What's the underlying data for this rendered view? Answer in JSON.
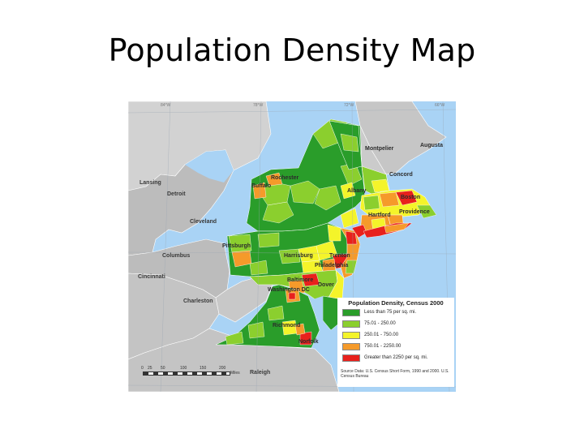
{
  "title": "Population Density Map",
  "legend": {
    "title": "Population Density, Census 2000",
    "classes": [
      {
        "label": "Less than 75 per sq. mi.",
        "color": "#2a9d2a"
      },
      {
        "label": "75.01 - 250.00",
        "color": "#8bcf2e"
      },
      {
        "label": "250.01 - 750.00",
        "color": "#f4f42a"
      },
      {
        "label": "750.01 - 2250.00",
        "color": "#f59a2a"
      },
      {
        "label": "Greater than 2250 per sq. mi.",
        "color": "#e8211c"
      }
    ],
    "source": "Source Data: U.S. Census Short Form, 1990 and 2000. U.S. Census Bureau"
  },
  "scale": {
    "ticks": [
      "0",
      "25",
      "50",
      "100",
      "150",
      "200"
    ],
    "unit": "Miles"
  },
  "cities": {
    "montpelier": "Montpelier",
    "augusta": "Augusta",
    "concord": "Concord",
    "albany": "Albany",
    "boston": "Boston",
    "hartford": "Hartford",
    "providence": "Providence",
    "rochester": "Rochester",
    "buffalo": "Buffalo",
    "lansing": "Lansing",
    "detroit": "Detroit",
    "cleveland": "Cleveland",
    "pittsburgh": "Pittsburgh",
    "harrisburg": "Harrisburg",
    "trenton": "Trenton",
    "philadelphia": "Philadelphia",
    "columbus": "Columbus",
    "cincinnati": "Cincinnati",
    "baltimore": "Baltimore",
    "washington": "Washington DC",
    "dover": "Dover",
    "charleston": "Charleston",
    "richmond": "Richmond",
    "norfolk": "Norfolk",
    "raleigh": "Raleigh"
  },
  "colors": {
    "water": "#a9d3f5",
    "land_outside": "#cfcfcf",
    "land_outline": "#ffffff"
  }
}
